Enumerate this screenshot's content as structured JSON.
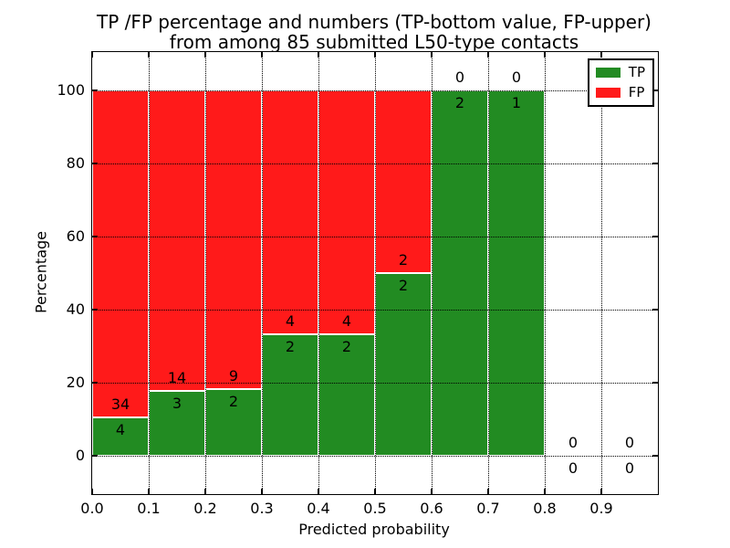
{
  "figure": {
    "title_line1": "TP /FP percentage and numbers (TP-bottom value, FP-upper)",
    "title_line2": "from among 85 submitted L50-type contacts",
    "xlabel": "Predicted probability",
    "ylabel": "Percentage"
  },
  "legend": {
    "items": [
      {
        "label": "TP",
        "color": "#228b22"
      },
      {
        "label": "FP",
        "color": "#ff1a1a"
      }
    ]
  },
  "chart_data": {
    "type": "bar",
    "stacked": true,
    "title": "TP /FP percentage and numbers (TP-bottom value, FP-upper) from among 85 submitted L50-type contacts",
    "xlabel": "Predicted probability",
    "ylabel": "Percentage",
    "xlim": [
      0.0,
      1.0
    ],
    "ylim": [
      -10.5,
      110.5
    ],
    "grid": true,
    "gridline_style": "dotted",
    "legend_position": "upper right",
    "total_contacts": 85,
    "bin_width": 0.1,
    "bin_starts": [
      0.0,
      0.1,
      0.2,
      0.3,
      0.4,
      0.5,
      0.6,
      0.7,
      0.8,
      0.9
    ],
    "xtick_labels": [
      "0.0",
      "0.1",
      "0.2",
      "0.3",
      "0.4",
      "0.5",
      "0.6",
      "0.7",
      "0.8",
      "0.9"
    ],
    "ytick_values": [
      0,
      20,
      40,
      60,
      80,
      100
    ],
    "series": [
      {
        "name": "TP",
        "color": "#228b22",
        "counts": [
          4,
          3,
          2,
          2,
          2,
          2,
          2,
          1,
          0,
          0
        ]
      },
      {
        "name": "FP",
        "color": "#ff1a1a",
        "counts": [
          34,
          14,
          9,
          4,
          4,
          2,
          0,
          0,
          0,
          0
        ]
      }
    ],
    "tp_percent": [
      10.5,
      17.6,
      18.2,
      33.3,
      33.3,
      50.0,
      100.0,
      100.0,
      0.0,
      0.0
    ],
    "fp_percent": [
      89.5,
      82.4,
      81.8,
      66.7,
      66.7,
      50.0,
      0.0,
      0.0,
      0.0,
      0.0
    ]
  }
}
